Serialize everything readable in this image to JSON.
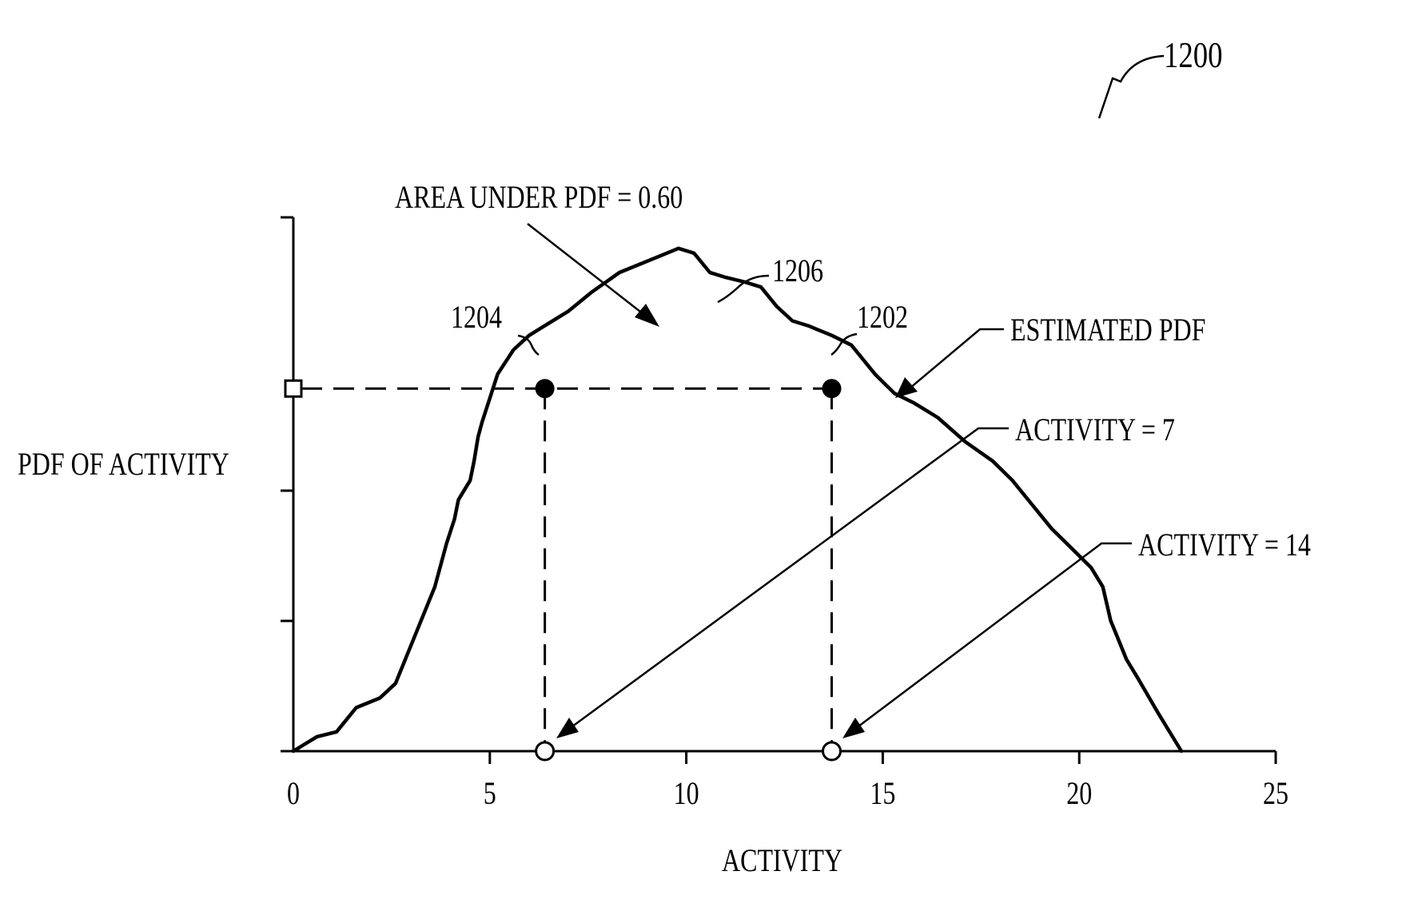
{
  "figure_number": "1200",
  "chart_data": {
    "type": "line",
    "title": "",
    "xlabel": "ACTIVITY",
    "ylabel": "PDF OF ACTIVITY",
    "xlim": [
      0,
      25
    ],
    "ylim": [
      0,
      1
    ],
    "x_ticks": [
      0,
      5,
      10,
      15,
      20,
      25
    ],
    "x_tick_labels": [
      "0",
      "5",
      "10",
      "15",
      "20",
      "25"
    ],
    "y_tick_labels": [],
    "grid": false,
    "series": [
      {
        "name": "ESTIMATED PDF",
        "ref": "1206",
        "x": [
          0,
          0.6,
          1.1,
          1.3,
          1.6,
          2.2,
          2.6,
          3.1,
          3.6,
          3.9,
          4.1,
          4.2,
          4.5,
          4.6,
          4.7,
          4.8,
          5.2,
          5.6,
          6.0,
          6.4,
          7.0,
          7.6,
          8.3,
          9.2,
          9.8,
          10.2,
          10.6,
          11.0,
          11.5,
          11.9,
          12.3,
          12.7,
          13.1,
          13.7,
          14.2,
          14.8,
          15.3,
          15.8,
          16.4,
          17.1,
          17.8,
          18.3,
          18.8,
          19.3,
          19.8,
          20.3,
          20.6,
          20.8,
          21.0,
          21.2,
          21.5,
          22.0,
          22.6
        ],
        "y": [
          0,
          0.03,
          0.04,
          0.06,
          0.09,
          0.11,
          0.14,
          0.24,
          0.34,
          0.43,
          0.48,
          0.52,
          0.56,
          0.6,
          0.65,
          0.68,
          0.78,
          0.83,
          0.86,
          0.88,
          0.91,
          0.95,
          0.99,
          1.02,
          1.04,
          1.03,
          0.99,
          0.98,
          0.97,
          0.96,
          0.92,
          0.89,
          0.88,
          0.86,
          0.84,
          0.78,
          0.74,
          0.72,
          0.69,
          0.64,
          0.6,
          0.56,
          0.51,
          0.46,
          0.42,
          0.38,
          0.34,
          0.27,
          0.23,
          0.19,
          0.15,
          0.08,
          0
        ]
      }
    ],
    "threshold": {
      "y": 0.75
    },
    "marked_points": [
      {
        "ref": "1204",
        "x": 6.4,
        "y": 0.75
      },
      {
        "ref": "1202",
        "x": 13.7,
        "y": 0.75
      }
    ],
    "x_markers": [
      6.4,
      13.7
    ],
    "annotations": {
      "area": "AREA UNDER PDF = 0.60",
      "estimated_pdf": "ESTIMATED PDF",
      "activity_7": "ACTIVITY = 7",
      "activity_14": "ACTIVITY = 14",
      "ref_1206": "1206",
      "ref_1204": "1204",
      "ref_1202": "1202"
    }
  }
}
